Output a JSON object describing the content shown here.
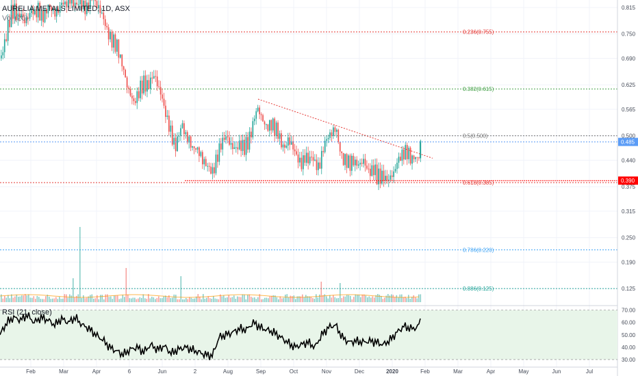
{
  "title": "AURELIA METALS LIMITED, 1D, ASX",
  "volume_label": "Vol (20)",
  "rsi_label": "RSI (21, close)",
  "colors": {
    "up": "#26a69a",
    "down": "#ef5350",
    "fib_red": "#e53935",
    "fib_green": "#43a047",
    "fib_grey": "#757575",
    "fib_blue": "#42a5f5",
    "fib_teal": "#26a69a",
    "price_badge": "#5b9cf6",
    "support_badge": "#ff0000",
    "rsi_band": "#e8f5e9"
  },
  "chart_data": {
    "type": "candlestick",
    "title": "AURELIA METALS LIMITED, 1D, ASX",
    "ylim": [
      0.1,
      0.83
    ],
    "yticks": [
      "0.815",
      "0.750",
      "0.690",
      "0.625",
      "0.565",
      "0.500",
      "0.440",
      "0.375",
      "0.315",
      "0.250",
      "0.190",
      "0.125"
    ],
    "xticks": [
      "Feb",
      "Mar",
      "Apr",
      "6",
      "Jun",
      "2",
      "Aug",
      "Sep",
      "Oct",
      "Nov",
      "Dec",
      "2020",
      "Feb",
      "Mar",
      "Apr",
      "May",
      "Jun",
      "Jul"
    ],
    "close_path": [
      [
        0,
        0.69
      ],
      [
        5,
        0.72
      ],
      [
        10,
        0.76
      ],
      [
        15,
        0.8
      ],
      [
        20,
        0.81
      ],
      [
        25,
        0.79
      ],
      [
        30,
        0.8
      ],
      [
        35,
        0.78
      ],
      [
        40,
        0.79
      ],
      [
        45,
        0.81
      ],
      [
        50,
        0.8
      ],
      [
        55,
        0.81
      ],
      [
        60,
        0.79
      ],
      [
        65,
        0.8
      ],
      [
        70,
        0.82
      ],
      [
        75,
        0.81
      ],
      [
        80,
        0.8
      ],
      [
        85,
        0.81
      ],
      [
        90,
        0.83
      ],
      [
        95,
        0.82
      ],
      [
        100,
        0.84
      ],
      [
        105,
        0.83
      ],
      [
        110,
        0.82
      ],
      [
        115,
        0.83
      ],
      [
        120,
        0.82
      ],
      [
        125,
        0.81
      ],
      [
        130,
        0.83
      ],
      [
        135,
        0.84
      ],
      [
        140,
        0.82
      ],
      [
        145,
        0.81
      ],
      [
        150,
        0.79
      ],
      [
        155,
        0.76
      ],
      [
        160,
        0.74
      ],
      [
        165,
        0.73
      ],
      [
        170,
        0.72
      ],
      [
        175,
        0.69
      ],
      [
        180,
        0.66
      ],
      [
        185,
        0.62
      ],
      [
        190,
        0.6
      ],
      [
        195,
        0.58
      ],
      [
        200,
        0.6
      ],
      [
        205,
        0.62
      ],
      [
        210,
        0.63
      ],
      [
        215,
        0.62
      ],
      [
        220,
        0.64
      ],
      [
        225,
        0.65
      ],
      [
        230,
        0.62
      ],
      [
        235,
        0.6
      ],
      [
        240,
        0.56
      ],
      [
        245,
        0.53
      ],
      [
        250,
        0.5
      ],
      [
        255,
        0.47
      ],
      [
        260,
        0.5
      ],
      [
        265,
        0.53
      ],
      [
        270,
        0.5
      ],
      [
        275,
        0.49
      ],
      [
        280,
        0.47
      ],
      [
        285,
        0.47
      ],
      [
        290,
        0.46
      ],
      [
        295,
        0.44
      ],
      [
        300,
        0.43
      ],
      [
        305,
        0.42
      ],
      [
        310,
        0.41
      ],
      [
        315,
        0.44
      ],
      [
        320,
        0.47
      ],
      [
        325,
        0.49
      ],
      [
        330,
        0.5
      ],
      [
        335,
        0.48
      ],
      [
        340,
        0.47
      ],
      [
        345,
        0.47
      ],
      [
        350,
        0.48
      ],
      [
        355,
        0.47
      ],
      [
        360,
        0.48
      ],
      [
        365,
        0.5
      ],
      [
        370,
        0.54
      ],
      [
        375,
        0.57
      ],
      [
        380,
        0.55
      ],
      [
        385,
        0.53
      ],
      [
        390,
        0.52
      ],
      [
        395,
        0.53
      ],
      [
        400,
        0.52
      ],
      [
        405,
        0.51
      ],
      [
        410,
        0.48
      ],
      [
        415,
        0.47
      ],
      [
        420,
        0.49
      ],
      [
        425,
        0.48
      ],
      [
        430,
        0.46
      ],
      [
        435,
        0.44
      ],
      [
        440,
        0.43
      ],
      [
        445,
        0.45
      ],
      [
        450,
        0.44
      ],
      [
        455,
        0.45
      ],
      [
        460,
        0.43
      ],
      [
        465,
        0.42
      ],
      [
        470,
        0.46
      ],
      [
        475,
        0.49
      ],
      [
        480,
        0.5
      ],
      [
        485,
        0.51
      ],
      [
        490,
        0.52
      ],
      [
        495,
        0.47
      ],
      [
        500,
        0.44
      ],
      [
        505,
        0.44
      ],
      [
        510,
        0.43
      ],
      [
        515,
        0.44
      ],
      [
        520,
        0.43
      ],
      [
        525,
        0.43
      ],
      [
        530,
        0.44
      ],
      [
        535,
        0.42
      ],
      [
        540,
        0.41
      ],
      [
        545,
        0.42
      ],
      [
        550,
        0.4
      ],
      [
        555,
        0.4
      ],
      [
        560,
        0.4
      ],
      [
        565,
        0.39
      ],
      [
        570,
        0.4
      ],
      [
        575,
        0.41
      ],
      [
        580,
        0.44
      ],
      [
        585,
        0.45
      ],
      [
        590,
        0.46
      ],
      [
        595,
        0.46
      ],
      [
        600,
        0.44
      ],
      [
        605,
        0.45
      ],
      [
        610,
        0.44
      ],
      [
        614,
        0.485
      ]
    ],
    "fib_levels": [
      {
        "label": "0.236(0.755)",
        "value": 0.755,
        "color": "#e53935"
      },
      {
        "label": "0.382(0.615)",
        "value": 0.615,
        "color": "#43a047"
      },
      {
        "label": "0.5(0.500)",
        "value": 0.5,
        "color": "#757575"
      },
      {
        "label": "0.618(0.385)",
        "value": 0.385,
        "color": "#e53935"
      },
      {
        "label": "0.786(0.220)",
        "value": 0.22,
        "color": "#42a5f5"
      },
      {
        "label": "0.886(0.125)",
        "value": 0.125,
        "color": "#26a69a"
      }
    ],
    "current_price": {
      "label": "0.485",
      "value": 0.485
    },
    "support_price": {
      "label": "0.390",
      "value": 0.39
    },
    "trendline": {
      "start": [
        377,
        0.59
      ],
      "end": [
        632,
        0.445
      ]
    },
    "rsi": {
      "ylim": [
        25,
        72
      ],
      "yticks": [
        "70.00",
        "60.00",
        "50.00",
        "40.00",
        "30.00"
      ],
      "upper": 70,
      "lower": 30,
      "values": [
        [
          0,
          50
        ],
        [
          10,
          60
        ],
        [
          20,
          64
        ],
        [
          30,
          62
        ],
        [
          40,
          66
        ],
        [
          50,
          60
        ],
        [
          60,
          64
        ],
        [
          70,
          62
        ],
        [
          80,
          58
        ],
        [
          90,
          63
        ],
        [
          100,
          60
        ],
        [
          110,
          64
        ],
        [
          120,
          58
        ],
        [
          130,
          55
        ],
        [
          140,
          50
        ],
        [
          150,
          46
        ],
        [
          160,
          40
        ],
        [
          170,
          37
        ],
        [
          180,
          34
        ],
        [
          190,
          38
        ],
        [
          200,
          40
        ],
        [
          210,
          36
        ],
        [
          220,
          42
        ],
        [
          230,
          38
        ],
        [
          240,
          41
        ],
        [
          250,
          35
        ],
        [
          260,
          38
        ],
        [
          270,
          40
        ],
        [
          280,
          38
        ],
        [
          290,
          36
        ],
        [
          300,
          34
        ],
        [
          310,
          33
        ],
        [
          320,
          48
        ],
        [
          330,
          50
        ],
        [
          340,
          52
        ],
        [
          350,
          55
        ],
        [
          360,
          54
        ],
        [
          370,
          60
        ],
        [
          380,
          56
        ],
        [
          390,
          54
        ],
        [
          400,
          52
        ],
        [
          410,
          48
        ],
        [
          420,
          44
        ],
        [
          430,
          40
        ],
        [
          440,
          42
        ],
        [
          450,
          44
        ],
        [
          460,
          40
        ],
        [
          470,
          50
        ],
        [
          480,
          56
        ],
        [
          490,
          58
        ],
        [
          500,
          48
        ],
        [
          510,
          44
        ],
        [
          520,
          45
        ],
        [
          530,
          44
        ],
        [
          540,
          45
        ],
        [
          550,
          44
        ],
        [
          560,
          42
        ],
        [
          570,
          46
        ],
        [
          580,
          52
        ],
        [
          590,
          57
        ],
        [
          600,
          55
        ],
        [
          610,
          56
        ],
        [
          614,
          62
        ]
      ]
    }
  }
}
